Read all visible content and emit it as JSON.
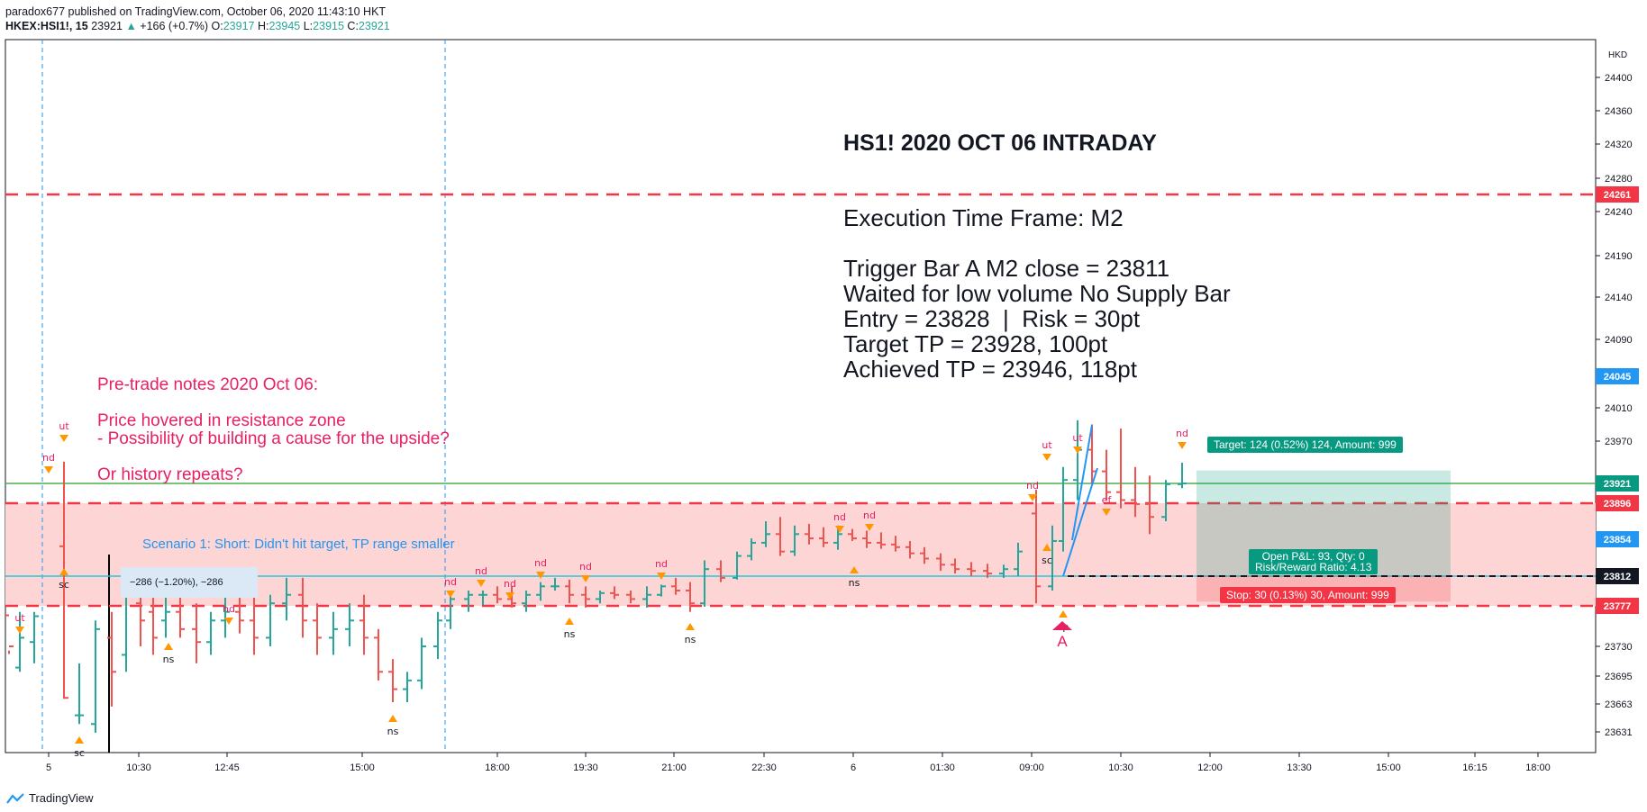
{
  "header": {
    "published": "paradox677 published on TradingView.com, October 06, 2020 11:43:10 HKT",
    "symbol": "HKEX:HSI1!, 15",
    "last": "23921",
    "change": "+166 (+0.7%)",
    "o_label": "O:",
    "o": "23917",
    "h_label": "H:",
    "h": "23945",
    "l_label": "L:",
    "l": "23915",
    "c_label": "C:",
    "c": "23921"
  },
  "footer": {
    "brand": "TradingView"
  },
  "notes": {
    "title": "HS1! 2020 OCT 06 INTRADAY",
    "execution": "Execution Time Frame: M2\n\nTrigger Bar A M2 close = 23811\nWaited for low volume No Supply Bar\nEntry = 23828  |  Risk = 30pt\nTarget TP = 23928, 100pt\nAchieved TP = 23946, 118pt",
    "pretrade": "Pre-trade notes 2020 Oct 06:\n\nPrice hovered in resistance zone\n- Possibility of building a cause for the upside?\n\nOr history repeats?",
    "scenario": "Scenario 1: Short: Didn't hit target, TP range smaller",
    "measure": "−286 (−1.20%), −286",
    "target_tag": "Target: 124 (0.52%) 124, Amount: 999",
    "pnl_tag": "Open P&L: 93, Qty: 0\nRisk/Reward Ratio: 4.13",
    "stop_tag": "Stop: 30 (0.13%) 30, Amount: 999",
    "point_a": "A"
  },
  "chart_data": {
    "type": "ohlc",
    "symbol": "HKEX:HSI1!",
    "interval": "15",
    "currency": "HKD",
    "y_ticks": [
      24400,
      24360,
      24320,
      24280,
      24240,
      24190,
      24140,
      24090,
      24010,
      23970,
      23730,
      23695,
      23663,
      23631
    ],
    "price_labels": [
      {
        "value": 24261,
        "color": "#f23645"
      },
      {
        "value": 24045,
        "color": "#2196f3"
      },
      {
        "value": 23921,
        "color": "#089981"
      },
      {
        "value": 23896,
        "color": "#f23645"
      },
      {
        "value": 23854,
        "color": "#2196f3"
      },
      {
        "value": 23812,
        "color": "#131722"
      },
      {
        "value": 23777,
        "color": "#f23645"
      }
    ],
    "x_labels": [
      "5",
      "10:30",
      "12:45",
      "15:00",
      "18:00",
      "19:30",
      "21:00",
      "22:30",
      "6",
      "01:30",
      "09:00",
      "10:30",
      "12:00",
      "13:30",
      "15:00",
      "16:15",
      "18:00"
    ],
    "resistance_zone": [
      23777,
      23896
    ],
    "levels": {
      "red_dashed": [
        24261,
        23896,
        23777
      ],
      "green": 23921,
      "blue": 23812
    },
    "long_position": {
      "entry": 23812,
      "target": 23936,
      "stop": 23782
    },
    "bar_annotations": [
      "ut",
      "nd",
      "sc",
      "ns",
      "ef",
      "sp"
    ],
    "colors": {
      "up": "#26a69a",
      "down": "#ef5350",
      "zone": "#fdd5d5",
      "level": "#f23645",
      "blue": "#2196f3",
      "accent": "#e91e63"
    }
  }
}
